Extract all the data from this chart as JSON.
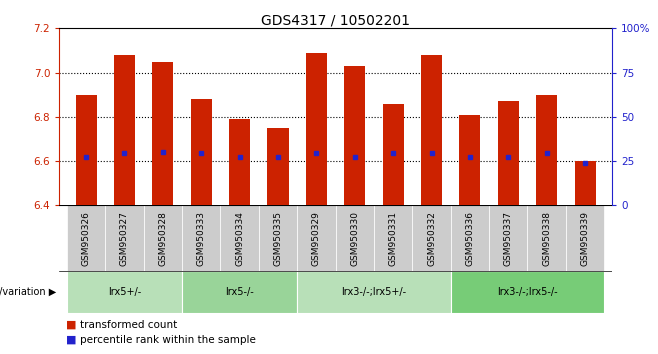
{
  "title": "GDS4317 / 10502201",
  "samples": [
    "GSM950326",
    "GSM950327",
    "GSM950328",
    "GSM950333",
    "GSM950334",
    "GSM950335",
    "GSM950329",
    "GSM950330",
    "GSM950331",
    "GSM950332",
    "GSM950336",
    "GSM950337",
    "GSM950338",
    "GSM950339"
  ],
  "bar_tops": [
    6.9,
    7.08,
    7.05,
    6.88,
    6.79,
    6.75,
    7.09,
    7.03,
    6.86,
    7.08,
    6.81,
    6.87,
    6.9,
    6.6
  ],
  "bar_bottoms": [
    6.4,
    6.4,
    6.4,
    6.4,
    6.4,
    6.4,
    6.4,
    6.4,
    6.4,
    6.4,
    6.4,
    6.4,
    6.4,
    6.4
  ],
  "percentile_values": [
    6.62,
    6.635,
    6.64,
    6.635,
    6.62,
    6.62,
    6.635,
    6.62,
    6.635,
    6.635,
    6.62,
    6.62,
    6.635,
    6.59
  ],
  "bar_color": "#cc2200",
  "percentile_color": "#2222cc",
  "ylim": [
    6.4,
    7.2
  ],
  "yticks_left": [
    6.4,
    6.6,
    6.8,
    7.0,
    7.2
  ],
  "yticks_right": [
    0,
    25,
    50,
    75,
    100
  ],
  "groups": [
    {
      "label": "lrx5+/-",
      "start": 0,
      "end": 3,
      "color": "#b8e0b8"
    },
    {
      "label": "lrx5-/-",
      "start": 3,
      "end": 6,
      "color": "#99d499"
    },
    {
      "label": "lrx3-/-;lrx5+/-",
      "start": 6,
      "end": 10,
      "color": "#b8e0b8"
    },
    {
      "label": "lrx3-/-;lrx5-/-",
      "start": 10,
      "end": 14,
      "color": "#77cc77"
    }
  ],
  "genotype_label": "genotype/variation",
  "legend_red_label": "transformed count",
  "legend_blue_label": "percentile rank within the sample",
  "background_color": "#ffffff",
  "tick_label_color_left": "#cc2200",
  "tick_label_color_right": "#2222cc",
  "title_fontsize": 10,
  "tick_fontsize": 7.5,
  "bar_width": 0.55
}
